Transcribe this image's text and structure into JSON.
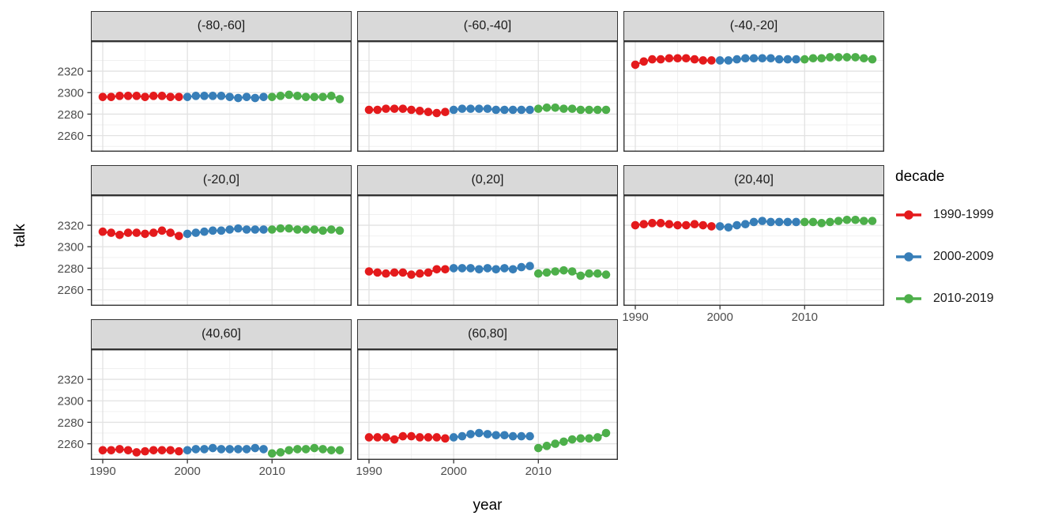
{
  "figure": {
    "y_axis_title": "talk",
    "x_axis_title": "year",
    "legend": {
      "title": "decade",
      "entries": [
        {
          "label": "1990-1999",
          "color": "#E41A1C"
        },
        {
          "label": "2000-2009",
          "color": "#377EB8"
        },
        {
          "label": "2010-2019",
          "color": "#4DAF4A"
        }
      ]
    },
    "theme": {
      "strip_fill": "#D9D9D9",
      "strip_border": "#333333",
      "panel_background": "#FFFFFF",
      "panel_border": "#333333",
      "grid_major_color": "#E2E2E2",
      "grid_minor_color": "#F0F0F0",
      "tick_color": "#333333",
      "tick_label_color": "#4D4D4D"
    }
  },
  "chart_data": {
    "type": "line",
    "title": "",
    "xlabel": "year",
    "ylabel": "talk",
    "legend_title": "decade",
    "legend_position": "right",
    "grid": true,
    "x_ticks": [
      1990,
      2000,
      2010
    ],
    "y_ticks": [
      2320,
      2300,
      2280,
      2260
    ],
    "x_minor_ticks": [
      1995,
      2005,
      2015
    ],
    "y_minor_ticks": [
      2250,
      2270,
      2290,
      2310,
      2330
    ],
    "xlim": [
      1988.6,
      2019.4
    ],
    "ylim": [
      2245,
      2348
    ],
    "decades": [
      {
        "name": "1990-1999",
        "color": "#E41A1C",
        "start_year": 1990
      },
      {
        "name": "2000-2009",
        "color": "#377EB8",
        "start_year": 2000
      },
      {
        "name": "2010-2019",
        "color": "#4DAF4A",
        "start_year": 2010
      }
    ],
    "facets": [
      {
        "label": "(-80,-60]",
        "values": [
          [
            2296,
            2296,
            2297,
            2297,
            2297,
            2296,
            2297,
            2297,
            2296,
            2296
          ],
          [
            2296,
            2297,
            2297,
            2297,
            2297,
            2296,
            2295,
            2296,
            2295,
            2296
          ],
          [
            2296,
            2297,
            2298,
            2297,
            2296,
            2296,
            2296,
            2297,
            2294
          ]
        ]
      },
      {
        "label": "(-60,-40]",
        "values": [
          [
            2284,
            2284,
            2285,
            2285,
            2285,
            2284,
            2283,
            2282,
            2281,
            2282
          ],
          [
            2284,
            2285,
            2285,
            2285,
            2285,
            2284,
            2284,
            2284,
            2284,
            2284
          ],
          [
            2285,
            2286,
            2286,
            2285,
            2285,
            2284,
            2284,
            2284,
            2284
          ]
        ]
      },
      {
        "label": "(-40,-20]",
        "values": [
          [
            2326,
            2329,
            2331,
            2331,
            2332,
            2332,
            2332,
            2331,
            2330,
            2330
          ],
          [
            2330,
            2330,
            2331,
            2332,
            2332,
            2332,
            2332,
            2331,
            2331,
            2331
          ],
          [
            2331,
            2332,
            2332,
            2333,
            2333,
            2333,
            2333,
            2332,
            2331
          ]
        ]
      },
      {
        "label": "(-20,0]",
        "values": [
          [
            2314,
            2313,
            2311,
            2313,
            2313,
            2312,
            2313,
            2315,
            2313,
            2310
          ],
          [
            2312,
            2313,
            2314,
            2315,
            2315,
            2316,
            2317,
            2316,
            2316,
            2316
          ],
          [
            2316,
            2317,
            2317,
            2316,
            2316,
            2316,
            2315,
            2316,
            2315
          ]
        ]
      },
      {
        "label": "(0,20]",
        "values": [
          [
            2277,
            2276,
            2275,
            2276,
            2276,
            2274,
            2275,
            2276,
            2279,
            2279
          ],
          [
            2280,
            2280,
            2280,
            2279,
            2280,
            2279,
            2280,
            2279,
            2281,
            2282
          ],
          [
            2275,
            2276,
            2277,
            2278,
            2277,
            2273,
            2275,
            2275,
            2274
          ]
        ]
      },
      {
        "label": "(20,40]",
        "values": [
          [
            2320,
            2321,
            2322,
            2322,
            2321,
            2320,
            2320,
            2321,
            2320,
            2319
          ],
          [
            2319,
            2318,
            2320,
            2321,
            2323,
            2324,
            2323,
            2323,
            2323,
            2323
          ],
          [
            2323,
            2323,
            2322,
            2323,
            2324,
            2325,
            2325,
            2324,
            2324
          ]
        ]
      },
      {
        "label": "(40,60]",
        "values": [
          [
            2254,
            2254,
            2255,
            2254,
            2252,
            2253,
            2254,
            2254,
            2254,
            2253
          ],
          [
            2254,
            2255,
            2255,
            2256,
            2255,
            2255,
            2255,
            2255,
            2256,
            2255
          ],
          [
            2251,
            2252,
            2254,
            2255,
            2255,
            2256,
            2255,
            2254,
            2254
          ]
        ]
      },
      {
        "label": "(60,80]",
        "values": [
          [
            2266,
            2266,
            2266,
            2264,
            2267,
            2267,
            2266,
            2266,
            2266,
            2265
          ],
          [
            2266,
            2267,
            2269,
            2270,
            2269,
            2268,
            2268,
            2267,
            2267,
            2267
          ],
          [
            2256,
            2258,
            2260,
            2262,
            2264,
            2265,
            2265,
            2266,
            2270
          ]
        ]
      }
    ]
  }
}
